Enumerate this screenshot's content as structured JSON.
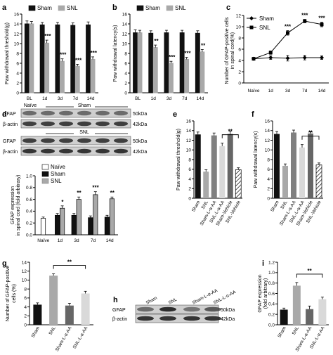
{
  "chart_data": [
    {
      "panel": "a",
      "type": "bar",
      "ylabel": "Paw withdrawal threshold(g)",
      "categories": [
        "BL",
        "1d",
        "3d",
        "7d",
        "14d"
      ],
      "ylim": [
        0,
        16
      ],
      "yticks": [
        "0",
        "2",
        "4",
        "6",
        "8",
        "10",
        "12",
        "14",
        "16"
      ],
      "series": [
        {
          "name": "Sham",
          "color": "#111111",
          "values": [
            14,
            13.8,
            13.8,
            13.7,
            13.8
          ],
          "err": [
            0.6,
            0.5,
            0.5,
            0.5,
            0.6
          ]
        },
        {
          "name": "SNL",
          "color": "#a9a9a9",
          "values": [
            14,
            10.1,
            6.4,
            5.4,
            6.8
          ],
          "err": [
            0.5,
            0.6,
            0.5,
            0.4,
            0.5
          ]
        }
      ],
      "sig": [
        "",
        "***",
        "***",
        "***",
        "***"
      ]
    },
    {
      "panel": "b",
      "type": "bar",
      "ylabel": "Paw withdrawal latency(s)",
      "categories": [
        "BL",
        "1d",
        "3d",
        "7d",
        "14d"
      ],
      "ylim": [
        0,
        16
      ],
      "yticks": [
        "0",
        "2",
        "4",
        "6",
        "8",
        "10",
        "12",
        "14",
        "16"
      ],
      "series": [
        {
          "name": "Sham",
          "color": "#111111",
          "values": [
            12.2,
            12.1,
            12.2,
            12.2,
            12.1
          ],
          "err": [
            0.6,
            0.5,
            0.5,
            0.5,
            0.5
          ]
        },
        {
          "name": "SNL",
          "color": "#a9a9a9",
          "values": [
            12.2,
            9.2,
            6.0,
            6.8,
            8.3
          ],
          "err": [
            0.5,
            0.5,
            0.4,
            0.4,
            0.5
          ]
        }
      ],
      "sig": [
        "",
        "**",
        "***",
        "***",
        "**"
      ]
    },
    {
      "panel": "c",
      "type": "line",
      "ylabel": "Number of GFAP-positive cells in spinal cord(%)",
      "x": [
        "Naïve",
        "1d",
        "3d",
        "7d",
        "14d"
      ],
      "ylim": [
        0,
        12
      ],
      "yticks": [
        "0",
        "2",
        "4",
        "6",
        "8",
        "10",
        "12"
      ],
      "series": [
        {
          "name": "Sham",
          "marker": "diamond",
          "values": [
            4.3,
            4.5,
            4.4,
            4.5,
            4.5
          ],
          "err": [
            0.2,
            0.3,
            0.5,
            0.4,
            0.3
          ]
        },
        {
          "name": "SNL",
          "marker": "square",
          "values": [
            4.3,
            5.4,
            8.9,
            11.0,
            10.4
          ],
          "err": [
            0.2,
            0.3,
            0.4,
            0.3,
            0.4
          ]
        }
      ],
      "sig": [
        "",
        "",
        "***",
        "***",
        "***"
      ]
    },
    {
      "panel": "d",
      "type": "bar",
      "ylabel": "GFAP expression in spinal cord (fold arbitrary)",
      "categories": [
        "Naïve",
        "1d",
        "3d",
        "7d",
        "14d"
      ],
      "ylim": [
        0,
        1.0
      ],
      "yticks": [
        "0.0",
        "0.2",
        "0.4",
        "0.6",
        "0.8",
        "1.0"
      ],
      "series": [
        {
          "name": "Naïve",
          "color": "#ffffff",
          "values": [
            0.28,
            null,
            null,
            null,
            null
          ],
          "err": [
            0.02,
            null,
            null,
            null,
            null
          ]
        },
        {
          "name": "Sham",
          "color": "#111111",
          "values": [
            null,
            0.33,
            0.33,
            0.29,
            0.3
          ],
          "err": [
            null,
            0.03,
            0.03,
            0.03,
            0.03
          ]
        },
        {
          "name": "SNL",
          "color": "#a9a9a9",
          "values": [
            null,
            0.45,
            0.6,
            0.68,
            0.61
          ],
          "err": [
            null,
            0.04,
            0.04,
            0.05,
            0.03
          ]
        }
      ],
      "sig": [
        "",
        "*",
        "**",
        "***",
        "**"
      ],
      "blot_labels": {
        "naive": "Naïve",
        "sham": "Sham",
        "snl": "SNL",
        "gfap": "GFAP",
        "actin": "β-actin",
        "kda50": "50kDa",
        "kda42": "42kDa"
      }
    },
    {
      "panel": "e",
      "type": "bar",
      "ylabel": "Paw withdrawal threshold(g)",
      "categories": [
        "Sham",
        "SNL",
        "Sham-L-α-AA",
        "SNL-L-α-AA",
        "Sham-Vehicle",
        "SNL-Vehicle"
      ],
      "ylim": [
        0,
        16
      ],
      "yticks": [
        "0",
        "2",
        "4",
        "6",
        "8",
        "10",
        "12",
        "14",
        "16"
      ],
      "values": [
        13.2,
        5.5,
        13.0,
        10.8,
        13.3,
        5.9
      ],
      "err": [
        0.5,
        0.4,
        0.5,
        0.6,
        0.6,
        0.4
      ],
      "colors": [
        "#111111",
        "#a9a9a9",
        "#808080",
        "#d9d9d9",
        "#666666",
        "hatch"
      ],
      "bracket": {
        "from": 3,
        "to": 5,
        "label": "**"
      }
    },
    {
      "panel": "f",
      "type": "bar",
      "ylabel": "Paw withdrawal latency(s)",
      "categories": [
        "Sham",
        "SNL",
        "Sham-L-α-AA",
        "SNL-L-α-AA",
        "Sham-Vehicle",
        "SNL-Vehicle"
      ],
      "ylim": [
        0,
        16
      ],
      "yticks": [
        "0",
        "2",
        "4",
        "6",
        "8",
        "10",
        "12",
        "14",
        "16"
      ],
      "values": [
        13.3,
        6.7,
        13.6,
        10.5,
        13.4,
        6.9
      ],
      "err": [
        0.5,
        0.4,
        0.5,
        0.6,
        0.5,
        0.4
      ],
      "colors": [
        "#111111",
        "#a9a9a9",
        "#808080",
        "#d9d9d9",
        "#666666",
        "hatch"
      ],
      "bracket": {
        "from": 3,
        "to": 5,
        "label": "**"
      }
    },
    {
      "panel": "g",
      "type": "bar",
      "ylabel": "Number of GFAP-positive cells (%)",
      "categories": [
        "Sham",
        "SNL",
        "Sham-L-α-AA",
        "SNL-L-α-AA"
      ],
      "ylim": [
        0,
        14
      ],
      "yticks": [
        "0",
        "2",
        "4",
        "6",
        "8",
        "10",
        "12",
        "14"
      ],
      "values": [
        4.5,
        11.0,
        4.3,
        7.0
      ],
      "err": [
        0.4,
        0.4,
        0.5,
        0.5
      ],
      "colors": [
        "#111111",
        "#a9a9a9",
        "#666666",
        "#d9d9d9"
      ],
      "bracket": {
        "from": 1,
        "to": 3,
        "label": "**"
      }
    },
    {
      "panel": "h",
      "type": "table",
      "lanes": [
        "Sham",
        "SNL",
        "Sham-L-α-AA",
        "SNL-L-α-AA"
      ],
      "rows": [
        "GFAP",
        "β-actin"
      ],
      "markers": [
        "50kDa",
        "42kDa"
      ]
    },
    {
      "panel": "i",
      "type": "bar",
      "ylabel": "GFAP expression (fold arbitrary)",
      "categories": [
        "Sham",
        "SNL",
        "Sham-L-α-AA",
        "SNL-L-α-AA"
      ],
      "ylim": [
        0,
        1.2
      ],
      "yticks": [
        "0.0",
        "0.2",
        "0.4",
        "0.6",
        "0.8",
        "1.0",
        "1.2"
      ],
      "values": [
        0.29,
        0.75,
        0.3,
        0.49
      ],
      "err": [
        0.03,
        0.06,
        0.06,
        0.04
      ],
      "colors": [
        "#111111",
        "#a9a9a9",
        "#666666",
        "#d9d9d9"
      ],
      "bracket": {
        "from": 1,
        "to": 3,
        "label": "**"
      }
    }
  ]
}
